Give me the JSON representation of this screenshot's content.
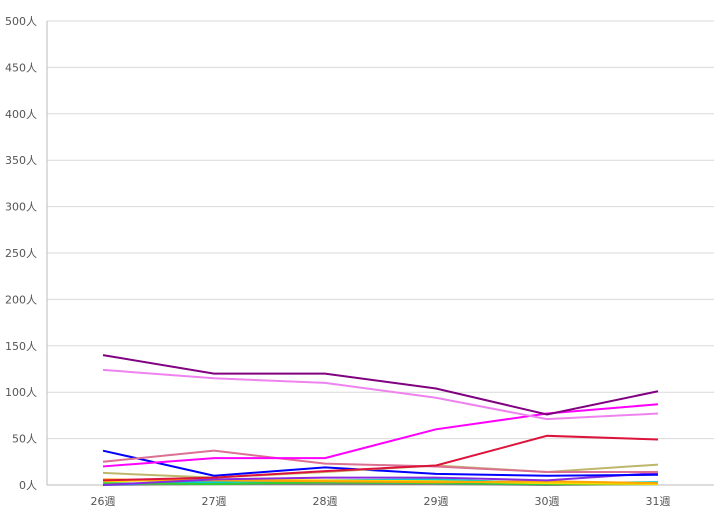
{
  "chart_data": {
    "type": "line",
    "title": "",
    "xlabel": "",
    "ylabel": "",
    "categories": [
      "26週",
      "27週",
      "28週",
      "29週",
      "30週",
      "31週"
    ],
    "ylim": [
      0,
      500
    ],
    "yticks": [
      0,
      50,
      100,
      150,
      200,
      250,
      300,
      350,
      400,
      450,
      500
    ],
    "ytick_suffix": "人",
    "grid": true,
    "legend": "none",
    "series": [
      {
        "color": "#800080",
        "values": [
          140,
          120,
          120,
          104,
          76,
          101
        ]
      },
      {
        "color": "#ee82ee",
        "values": [
          124,
          115,
          110,
          94,
          71,
          77
        ]
      },
      {
        "color": "#ff00ff",
        "values": [
          20,
          29,
          29,
          60,
          77,
          87
        ]
      },
      {
        "color": "#dc143c",
        "values": [
          5,
          8,
          15,
          21,
          53,
          49
        ]
      },
      {
        "color": "#db7093",
        "values": [
          25,
          37,
          23,
          20,
          14,
          14
        ]
      },
      {
        "color": "#bdb76b",
        "values": [
          13,
          8,
          14,
          21,
          14,
          22
        ]
      },
      {
        "color": "#0000ff",
        "values": [
          37,
          10,
          19,
          12,
          10,
          11
        ]
      },
      {
        "color": "#8a2be2",
        "values": [
          0,
          6,
          8,
          8,
          5,
          13
        ]
      },
      {
        "color": "#ffa500",
        "values": [
          6,
          5,
          4,
          3,
          4,
          2
        ]
      },
      {
        "color": "#ffd700",
        "values": [
          4,
          6,
          5,
          4,
          2,
          1
        ]
      },
      {
        "color": "#32cd32",
        "values": [
          2,
          1,
          3,
          2,
          1,
          1
        ]
      },
      {
        "color": "#00ced1",
        "values": [
          1,
          3,
          5,
          6,
          2,
          3
        ]
      },
      {
        "color": "#1e90ff",
        "values": [
          0,
          4,
          3,
          2,
          1,
          3
        ]
      },
      {
        "color": "#808080",
        "values": [
          0,
          1,
          1,
          1,
          0,
          1
        ]
      }
    ]
  }
}
